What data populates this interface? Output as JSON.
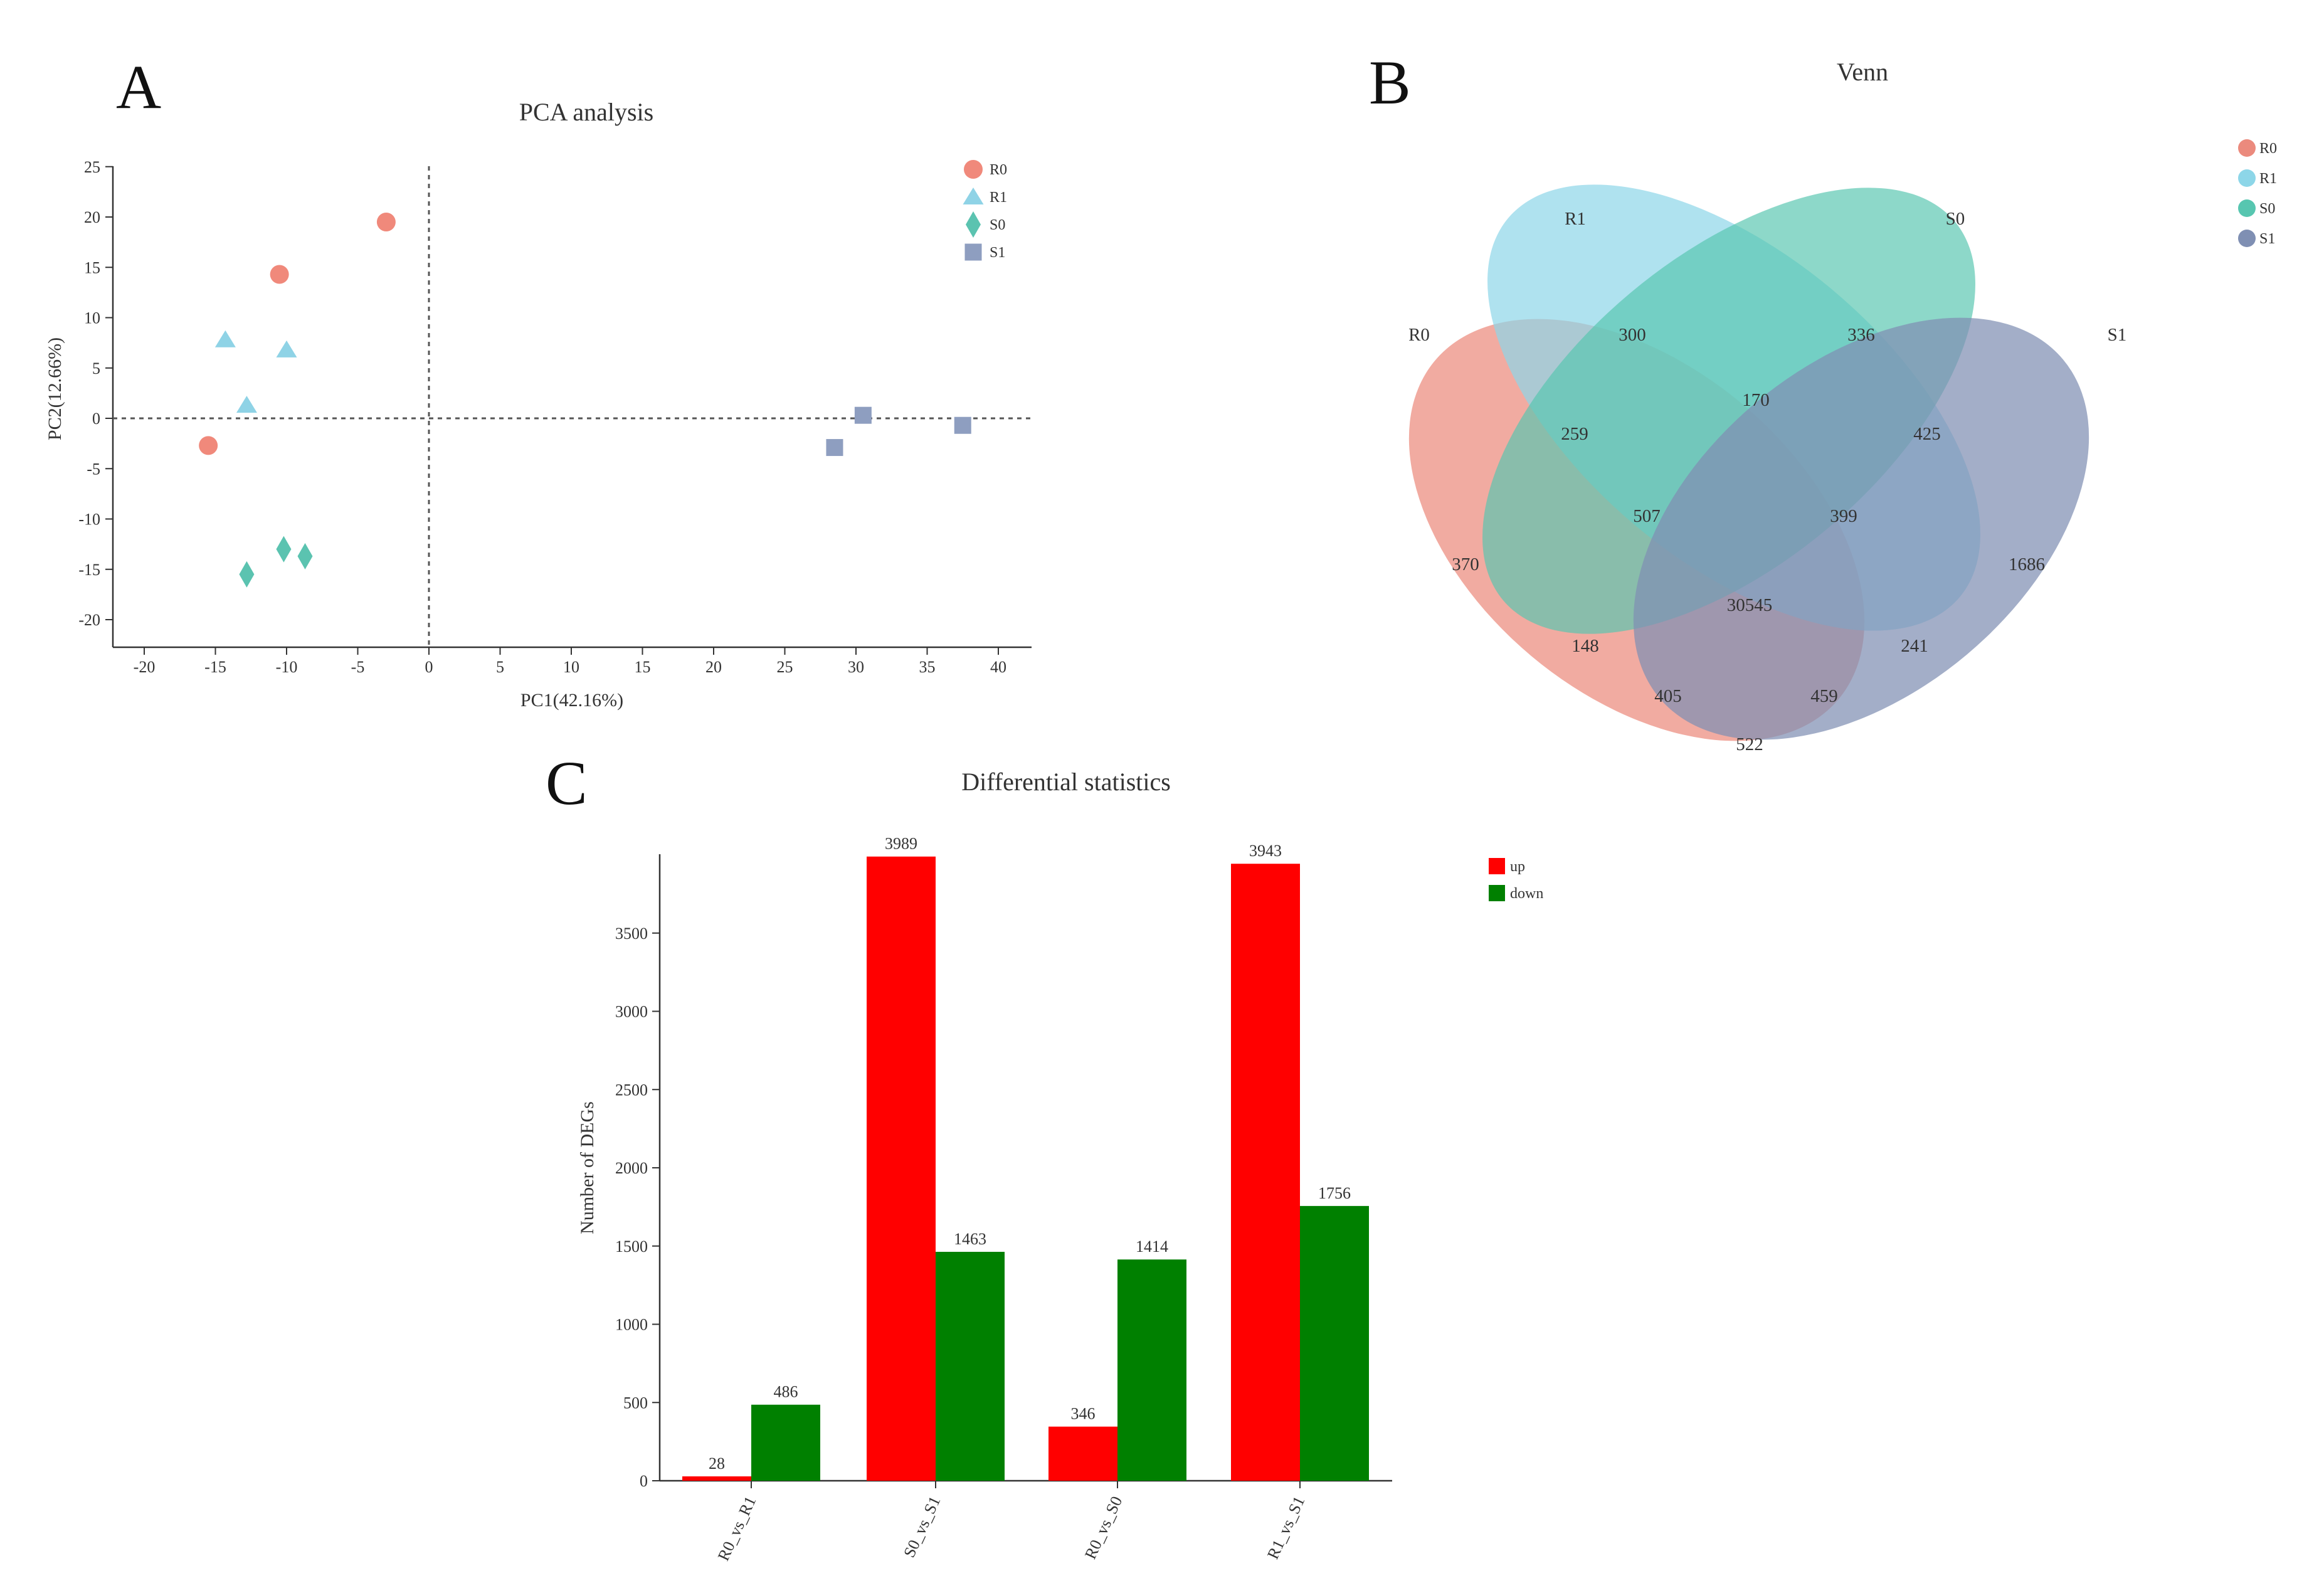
{
  "panels": {
    "a": {
      "letter": "A",
      "chart_data": {
        "type": "scatter",
        "title": "PCA analysis",
        "xlabel": "PC1(42.16%)",
        "ylabel": "PC2(12.66%)",
        "xlim": [
          -22,
          42
        ],
        "ylim": [
          -23,
          25
        ],
        "xticks": [
          -20,
          -15,
          -10,
          -5,
          0,
          5,
          10,
          15,
          20,
          25,
          30,
          35,
          40
        ],
        "yticks": [
          25,
          20,
          15,
          10,
          5,
          0,
          -5,
          -10,
          -15,
          -20
        ],
        "series": [
          {
            "name": "R0",
            "marker": "circle",
            "color": "#f0897b",
            "points": [
              [
                -3,
                19.5
              ],
              [
                -10.5,
                14.3
              ],
              [
                -15.5,
                -2.7
              ]
            ]
          },
          {
            "name": "R1",
            "marker": "triangle",
            "color": "#8fd3e6",
            "points": [
              [
                -14.3,
                7.8
              ],
              [
                -10,
                6.8
              ],
              [
                -12.8,
                1.3
              ]
            ]
          },
          {
            "name": "S0",
            "marker": "diamond",
            "color": "#5bc3b0",
            "points": [
              [
                -10.2,
                -13
              ],
              [
                -8.7,
                -13.7
              ],
              [
                -12.8,
                -15.5
              ]
            ]
          },
          {
            "name": "S1",
            "marker": "square",
            "color": "#8e9ec0",
            "points": [
              [
                30.5,
                0.3
              ],
              [
                37.5,
                -0.7
              ],
              [
                28.5,
                -2.9
              ]
            ]
          }
        ]
      }
    },
    "b": {
      "letter": "B",
      "venn": {
        "title": "Venn",
        "sets": [
          {
            "name": "R0",
            "color": "#eb8a7d"
          },
          {
            "name": "R1",
            "color": "#8dd6e8"
          },
          {
            "name": "S0",
            "color": "#57c6b0"
          },
          {
            "name": "S1",
            "color": "#7f8fb3"
          }
        ],
        "regions": [
          {
            "sets": "R1",
            "value": "300"
          },
          {
            "sets": "S0",
            "value": "336"
          },
          {
            "sets": "R1&S0",
            "value": "170"
          },
          {
            "sets": "R0&R1",
            "value": "259"
          },
          {
            "sets": "S0&S1",
            "value": "425"
          },
          {
            "sets": "R0&R1&S0",
            "value": "507"
          },
          {
            "sets": "R1&S0&S1",
            "value": "399"
          },
          {
            "sets": "R0",
            "value": "370"
          },
          {
            "sets": "S1",
            "value": "1686"
          },
          {
            "sets": "R0&R1&S0&S1",
            "value": "30545"
          },
          {
            "sets": "R0&S0",
            "value": "148"
          },
          {
            "sets": "R1&S1",
            "value": "241"
          },
          {
            "sets": "R0&S0&S1",
            "value": "405"
          },
          {
            "sets": "R0&R1&S1",
            "value": "459"
          },
          {
            "sets": "R0&S1",
            "value": "522"
          }
        ]
      }
    },
    "c": {
      "letter": "C",
      "chart_data": {
        "type": "bar",
        "title": "Differential statistics",
        "xlabel": "",
        "ylabel": "Number of DEGs",
        "ylim": [
          0,
          4000
        ],
        "yticks": [
          0,
          500,
          1000,
          1500,
          2000,
          2500,
          3000,
          3500
        ],
        "categories": [
          "R0_vs_R1",
          "S0_vs_S1",
          "R0_vs_S0",
          "R1_vs_S1"
        ],
        "series": [
          {
            "name": "up",
            "color": "#ff0000",
            "values": [
              28,
              3989,
              346,
              3943
            ]
          },
          {
            "name": "down",
            "color": "#008000",
            "values": [
              486,
              1463,
              1414,
              1756
            ]
          }
        ]
      }
    }
  }
}
